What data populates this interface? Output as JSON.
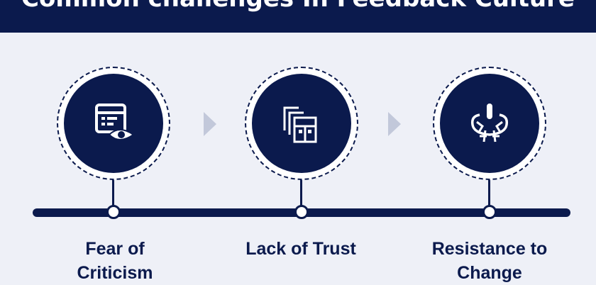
{
  "header": {
    "title": "Common challenges In Feedback Culture"
  },
  "steps": [
    {
      "label_line1": "Fear of",
      "label_line2": "Criticism",
      "icon": "dashboard-eye-icon"
    },
    {
      "label_line1": "Lack of Trust",
      "label_line2": "",
      "icon": "buildings-icon"
    },
    {
      "label_line1": "Resistance to",
      "label_line2": "Change",
      "icon": "resistance-icon"
    }
  ],
  "colors": {
    "navy": "#0b1a4d",
    "background": "#eef0f7",
    "arrow": "#c2c8da"
  }
}
